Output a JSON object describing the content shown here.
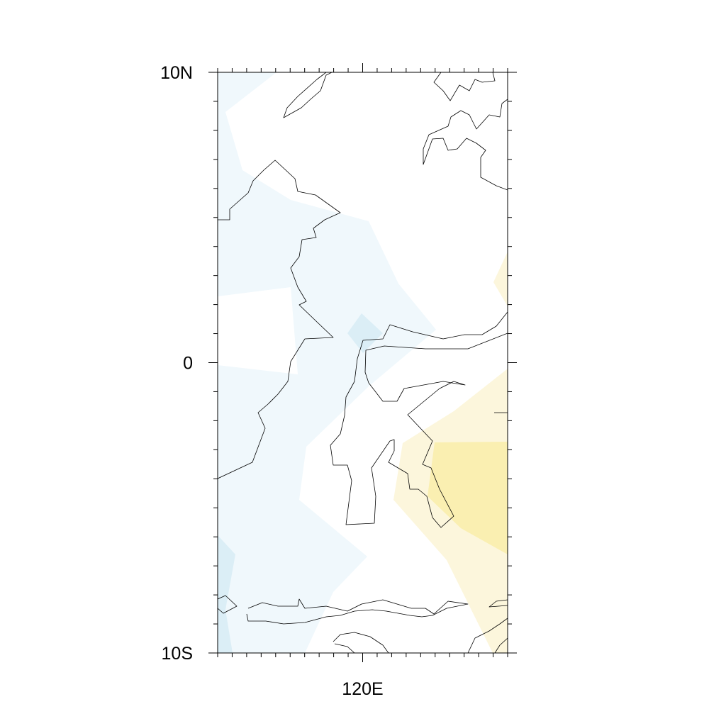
{
  "map": {
    "region": {
      "lon_min": 115,
      "lon_max": 125,
      "lat_min": -10,
      "lat_max": 10
    },
    "y_ticks": [
      {
        "lat": 10,
        "label": "10N"
      },
      {
        "lat": 0,
        "label": "0"
      },
      {
        "lat": -10,
        "label": "10S"
      }
    ],
    "x_ticks": [
      {
        "lon": 120,
        "label": "120E"
      }
    ],
    "shading_colors": {
      "light_blue": "#f0f8fc",
      "medium_blue": "#dbeef6",
      "light_yellow": "#fcf6dc",
      "yellow": "#faefb1"
    },
    "background_color": "#ffffff"
  }
}
